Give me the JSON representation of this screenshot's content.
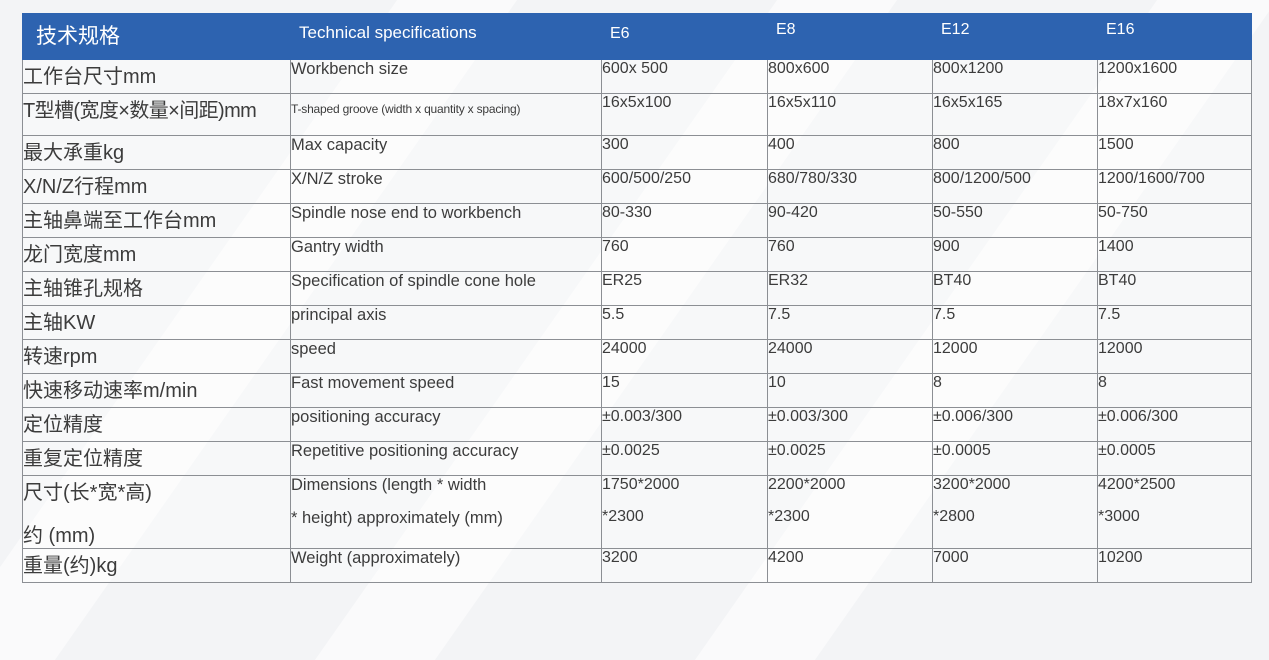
{
  "table": {
    "header": {
      "zh": "技术规格",
      "en": "Technical specifications",
      "models": [
        "E6",
        "E8",
        "E12",
        "E16"
      ]
    },
    "rows": [
      {
        "zh": "工作台尺寸mm",
        "en": "Workbench size",
        "values": [
          "600x 500",
          "800x600",
          "800x1200",
          "1200x1600"
        ]
      },
      {
        "zh": "T型槽(宽度×数量×间距)mm",
        "en": "T-shaped groove (width x quantity x spacing)",
        "values": [
          "16x5x100",
          "16x5x110",
          "16x5x165",
          "18x7x160"
        ]
      },
      {
        "zh": "最大承重kg",
        "en": "Max capacity",
        "values": [
          "300",
          "400",
          "800",
          "1500"
        ]
      },
      {
        "zh": "X/N/Z行程mm",
        "en": "X/N/Z stroke",
        "values": [
          "600/500/250",
          "680/780/330",
          "800/1200/500",
          "1200/1600/700"
        ]
      },
      {
        "zh": "主轴鼻端至工作台mm",
        "en": "Spindle nose end to workbench",
        "values": [
          "80-330",
          "90-420",
          "50-550",
          "50-750"
        ]
      },
      {
        "zh": "龙门宽度mm",
        "en": "Gantry width",
        "values": [
          "760",
          "760",
          "900",
          "1400"
        ]
      },
      {
        "zh": "主轴锥孔规格",
        "en": "Specification of spindle cone hole",
        "values": [
          "ER25",
          "ER32",
          "BT40",
          "BT40"
        ]
      },
      {
        "zh": "主轴KW",
        "en": "principal axis",
        "values": [
          "5.5",
          "7.5",
          "7.5",
          "7.5"
        ]
      },
      {
        "zh": "转速rpm",
        "en": "speed",
        "values": [
          "24000",
          "24000",
          "12000",
          "12000"
        ]
      },
      {
        "zh": "快速移动速率m/min",
        "en": "Fast movement speed",
        "values": [
          "15",
          "10",
          "8",
          "8"
        ]
      },
      {
        "zh": "定位精度",
        "en": "positioning accuracy",
        "values": [
          "±0.003/300",
          "±0.003/300",
          "±0.006/300",
          "±0.006/300"
        ]
      },
      {
        "zh": "重复定位精度",
        "en": "Repetitive positioning accuracy",
        "values": [
          "±0.0025",
          "±0.0025",
          "±0.0005",
          "±0.0005"
        ]
      }
    ],
    "dimensions_row": {
      "zh_line1": "尺寸(长*宽*高)",
      "zh_line2": "约 (mm)",
      "en_line1": "Dimensions (length * width",
      "en_line2": "* height) approximately (mm)",
      "values": [
        {
          "line1": "1750*2000",
          "line2": "*2300"
        },
        {
          "line1": "2200*2000",
          "line2": "*2300"
        },
        {
          "line1": "3200*2000",
          "line2": "*2800"
        },
        {
          "line1": "4200*2500",
          "line2": "*3000"
        }
      ]
    },
    "weight_row": {
      "zh": "重量(约)kg",
      "en": "Weight (approximately)",
      "values": [
        "3200",
        "4200",
        "7000",
        "10200"
      ]
    }
  },
  "colors": {
    "header_bg": "#2d63b0",
    "header_text": "#ffffff",
    "border": "#8c8f94",
    "text": "#3c3c3c"
  }
}
